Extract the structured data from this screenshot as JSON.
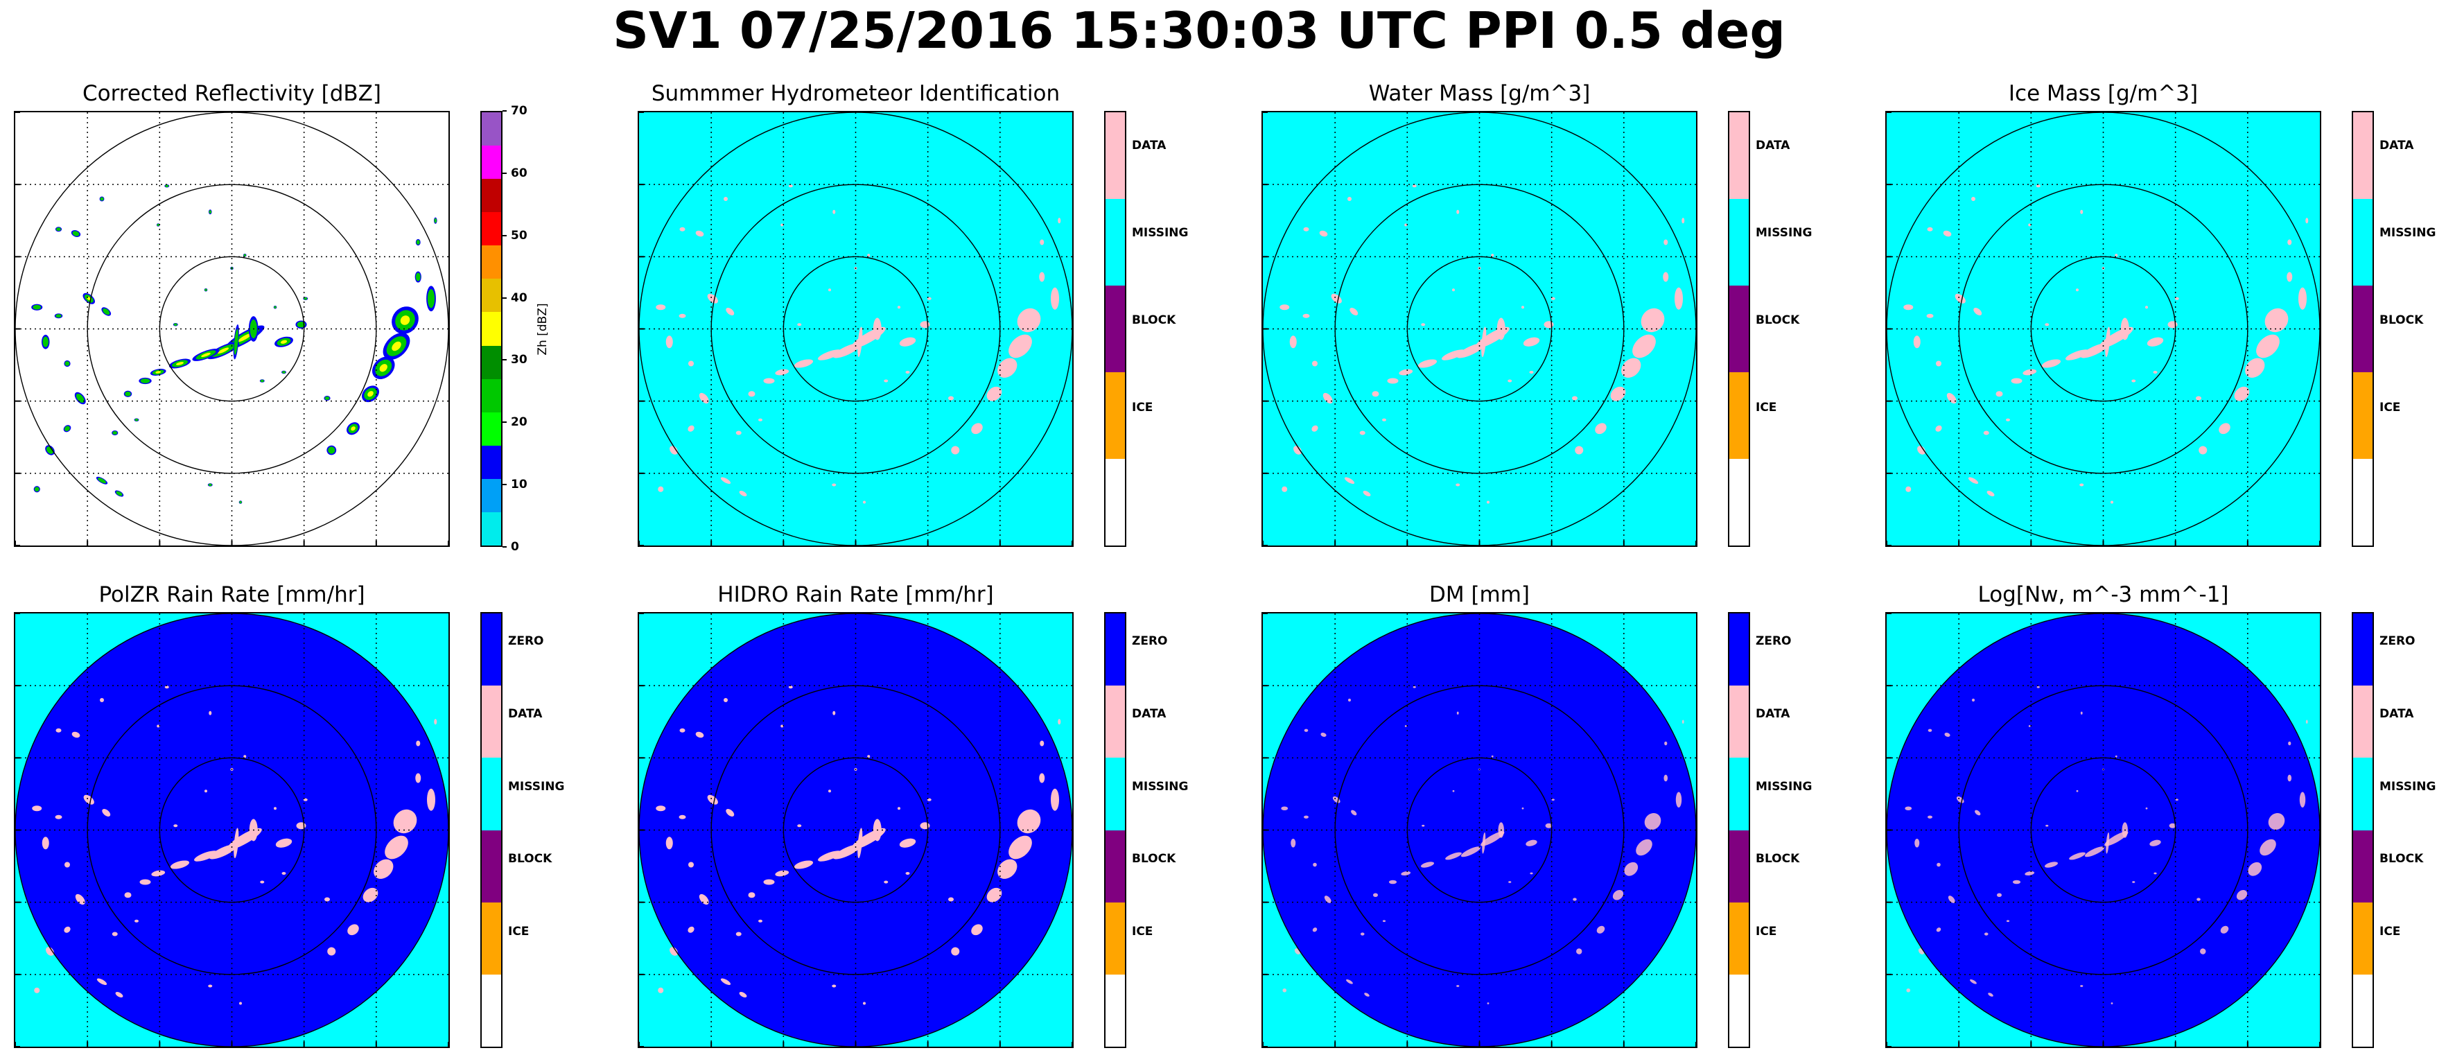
{
  "figure_title": "SV1 07/25/2016 15:30:03 UTC PPI 0.5 deg",
  "colors": {
    "background": "#00ffff",
    "zero_fill": "#0000ff",
    "data": "#ffc0cb",
    "missing": "#00ffff",
    "block": "#800080",
    "ice": "#ffa500",
    "blank": "#ffffff",
    "ring": "#000000",
    "grid": "#000000"
  },
  "panels": [
    {
      "title": "Corrected Reflectivity [dBZ]",
      "kind": "reflectivity"
    },
    {
      "title": "Summmer Hydrometeor Identification",
      "kind": "category4"
    },
    {
      "title": "Water Mass [g/m^3]",
      "kind": "category4"
    },
    {
      "title": "Ice Mass [g/m^3]",
      "kind": "category4"
    },
    {
      "title": "PolZR Rain Rate [mm/hr]",
      "kind": "category5"
    },
    {
      "title": "HIDRO Rain Rate [mm/hr]",
      "kind": "category5"
    },
    {
      "title": "DM [mm]",
      "kind": "category5"
    },
    {
      "title": "Log[Nw, m^-3 mm^-1]",
      "kind": "category5"
    }
  ],
  "colorbars": {
    "reflectivity": {
      "label": "Zh [dBZ]",
      "ticks": [
        "70",
        "60",
        "50",
        "40",
        "30",
        "20",
        "10",
        "0"
      ],
      "colors": [
        "#9854c6",
        "#ff00ff",
        "#c00000",
        "#ff0000",
        "#ff9000",
        "#e7c000",
        "#ffff00",
        "#008e00",
        "#00c800",
        "#00ff00",
        "#0000f6",
        "#00a0f6",
        "#00ecec"
      ]
    },
    "category4": {
      "labels": [
        "DATA",
        "MISSING",
        "BLOCK",
        "ICE"
      ],
      "colors": [
        "#ffc0cb",
        "#00ffff",
        "#800080",
        "#ffa500",
        "#ffffff"
      ]
    },
    "category5": {
      "labels": [
        "ZERO",
        "DATA",
        "MISSING",
        "BLOCK",
        "ICE"
      ],
      "colors": [
        "#0000ff",
        "#ffc0cb",
        "#00ffff",
        "#800080",
        "#ffa500",
        "#ffffff"
      ]
    }
  },
  "chart_data": {
    "type": "heatmap",
    "title": "SV1 07/25/2016 15:30:03 UTC PPI 0.5 deg",
    "projection": "PPI",
    "range_rings": 3,
    "grid": true,
    "panels": [
      "Corrected Reflectivity [dBZ]",
      "Summmer Hydrometeor Identification",
      "Water Mass [g/m^3]",
      "Ice Mass [g/m^3]",
      "PolZR Rain Rate [mm/hr]",
      "HIDRO Rain Rate [mm/hr]",
      "DM [mm]",
      "Log[Nw, m^-3 mm^-1]"
    ],
    "reflectivity_colorbar": {
      "label": "Zh [dBZ]",
      "range": [
        0,
        70
      ],
      "ticks": [
        0,
        10,
        20,
        30,
        40,
        50,
        60,
        70
      ]
    },
    "category_colorbar_top": [
      "DATA",
      "MISSING",
      "BLOCK",
      "ICE"
    ],
    "category_colorbar_bottom": [
      "ZERO",
      "DATA",
      "MISSING",
      "BLOCK",
      "ICE"
    ]
  }
}
